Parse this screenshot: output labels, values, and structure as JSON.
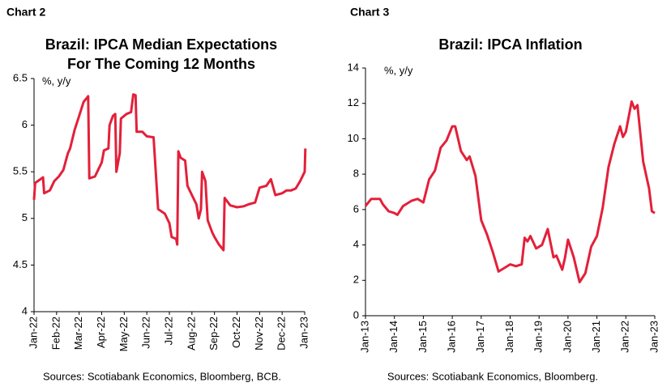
{
  "chart_data": [
    {
      "type": "line",
      "label": "Chart 2",
      "title": [
        "Brazil: IPCA Median Expectations",
        "For The Coming 12 Months"
      ],
      "annotation": "%, y/y",
      "source": "Sources: Scotiabank Economics, Bloomberg, BCB.",
      "xlim": [
        0,
        12
      ],
      "xticks": [
        {
          "value": 0,
          "label": "Jan-22"
        },
        {
          "value": 1,
          "label": "Feb-22"
        },
        {
          "value": 2,
          "label": "Mar-22"
        },
        {
          "value": 3,
          "label": "Apr-22"
        },
        {
          "value": 4,
          "label": "May-22"
        },
        {
          "value": 5,
          "label": "Jun-22"
        },
        {
          "value": 6,
          "label": "Jul-22"
        },
        {
          "value": 7,
          "label": "Aug-22"
        },
        {
          "value": 8,
          "label": "Sep-22"
        },
        {
          "value": 9,
          "label": "Oct-22"
        },
        {
          "value": 10,
          "label": "Nov-22"
        },
        {
          "value": 11,
          "label": "Dec-22"
        },
        {
          "value": 12,
          "label": "Jan-23"
        }
      ],
      "ylim": [
        4,
        6.5
      ],
      "yticks": [
        4,
        4.5,
        5,
        5.5,
        6,
        6.5
      ],
      "series": [
        {
          "color": "#e3203a",
          "x": [
            0,
            0.05,
            0.4,
            0.45,
            0.7,
            0.9,
            1.1,
            1.3,
            1.5,
            1.6,
            1.8,
            2.0,
            2.2,
            2.4,
            2.45,
            2.7,
            3.0,
            3.1,
            3.3,
            3.35,
            3.5,
            3.6,
            3.65,
            3.8,
            3.85,
            4.1,
            4.3,
            4.4,
            4.5,
            4.55,
            4.8,
            5.0,
            5.3,
            5.5,
            5.8,
            6.0,
            6.1,
            6.3,
            6.35,
            6.4,
            6.5,
            6.7,
            6.8,
            7.0,
            7.2,
            7.3,
            7.4,
            7.45,
            7.6,
            7.7,
            7.9,
            8.0,
            8.2,
            8.4,
            8.45,
            8.7,
            9.0,
            9.3,
            9.5,
            9.8,
            10.0,
            10.3,
            10.5,
            10.7,
            11.0,
            11.2,
            11.4,
            11.6,
            11.8,
            12.0,
            12.03
          ],
          "values": [
            5.2,
            5.38,
            5.44,
            5.27,
            5.3,
            5.4,
            5.45,
            5.52,
            5.7,
            5.75,
            5.95,
            6.1,
            6.25,
            6.31,
            5.43,
            5.45,
            5.6,
            5.73,
            5.75,
            6.0,
            6.1,
            6.12,
            5.5,
            5.7,
            6.07,
            6.12,
            6.14,
            6.33,
            6.32,
            5.93,
            5.93,
            5.88,
            5.87,
            5.1,
            5.05,
            4.95,
            4.8,
            4.78,
            4.72,
            5.72,
            5.65,
            5.62,
            5.35,
            5.25,
            5.15,
            5.0,
            5.1,
            5.5,
            5.4,
            4.98,
            4.85,
            4.8,
            4.72,
            4.66,
            5.22,
            5.14,
            5.12,
            5.13,
            5.15,
            5.17,
            5.33,
            5.35,
            5.42,
            5.25,
            5.27,
            5.3,
            5.3,
            5.32,
            5.4,
            5.5,
            5.75
          ]
        }
      ]
    },
    {
      "type": "line",
      "label": "Chart 3",
      "title": [
        "Brazil: IPCA Inflation"
      ],
      "annotation": "%, y/y",
      "source": "Sources: Scotiabank Economics, Bloomberg.",
      "xlim": [
        2013,
        2023
      ],
      "xticks": [
        {
          "value": 2013,
          "label": "Jan-13"
        },
        {
          "value": 2014,
          "label": "Jan-14"
        },
        {
          "value": 2015,
          "label": "Jan-15"
        },
        {
          "value": 2016,
          "label": "Jan-16"
        },
        {
          "value": 2017,
          "label": "Jan-17"
        },
        {
          "value": 2018,
          "label": "Jan-18"
        },
        {
          "value": 2019,
          "label": "Jan-19"
        },
        {
          "value": 2020,
          "label": "Jan-20"
        },
        {
          "value": 2021,
          "label": "Jan-21"
        },
        {
          "value": 2022,
          "label": "Jan-22"
        },
        {
          "value": 2023,
          "label": "Jan-23"
        }
      ],
      "ylim": [
        0,
        14
      ],
      "yticks": [
        0,
        2,
        4,
        6,
        8,
        10,
        12,
        14
      ],
      "series": [
        {
          "color": "#e3203a",
          "x": [
            2013.0,
            2013.2,
            2013.5,
            2013.6,
            2013.8,
            2014.0,
            2014.1,
            2014.3,
            2014.6,
            2014.8,
            2015.0,
            2015.2,
            2015.4,
            2015.6,
            2015.8,
            2016.0,
            2016.1,
            2016.3,
            2016.5,
            2016.6,
            2016.8,
            2017.0,
            2017.2,
            2017.4,
            2017.6,
            2017.8,
            2018.0,
            2018.2,
            2018.4,
            2018.5,
            2018.6,
            2018.7,
            2018.9,
            2019.1,
            2019.3,
            2019.5,
            2019.6,
            2019.8,
            2019.9,
            2020.0,
            2020.2,
            2020.4,
            2020.6,
            2020.8,
            2021.0,
            2021.2,
            2021.4,
            2021.6,
            2021.8,
            2021.9,
            2022.0,
            2022.2,
            2022.3,
            2022.4,
            2022.6,
            2022.8,
            2022.9,
            2023.0
          ],
          "values": [
            6.2,
            6.6,
            6.6,
            6.3,
            5.9,
            5.8,
            5.7,
            6.2,
            6.5,
            6.6,
            6.4,
            7.7,
            8.2,
            9.5,
            9.9,
            10.7,
            10.7,
            9.3,
            8.8,
            9.0,
            7.9,
            5.4,
            4.6,
            3.6,
            2.5,
            2.7,
            2.9,
            2.8,
            2.9,
            4.4,
            4.2,
            4.5,
            3.8,
            4.0,
            4.9,
            3.3,
            3.4,
            2.6,
            3.3,
            4.3,
            3.3,
            1.9,
            2.4,
            3.9,
            4.5,
            6.1,
            8.4,
            9.7,
            10.7,
            10.1,
            10.4,
            12.1,
            11.7,
            11.9,
            8.7,
            7.2,
            5.9,
            5.8
          ]
        }
      ]
    }
  ]
}
